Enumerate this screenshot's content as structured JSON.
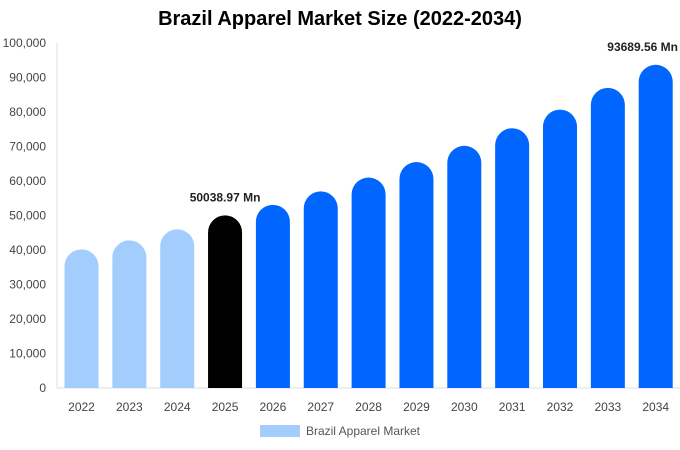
{
  "chart_data": {
    "type": "bar",
    "title": "Brazil Apparel Market Size (2022-2034)",
    "xlabel": "",
    "ylabel": "",
    "ylim": [
      0,
      100000
    ],
    "yticks": [
      0,
      10000,
      20000,
      30000,
      40000,
      50000,
      60000,
      70000,
      80000,
      90000,
      100000
    ],
    "ytick_labels": [
      "0",
      "10,000",
      "20,000",
      "30,000",
      "40,000",
      "50,000",
      "60,000",
      "70,000",
      "80,000",
      "90,000",
      "100,000"
    ],
    "categories": [
      "2022",
      "2023",
      "2024",
      "2025",
      "2026",
      "2027",
      "2028",
      "2029",
      "2030",
      "2031",
      "2032",
      "2033",
      "2034"
    ],
    "values": [
      40200,
      42800,
      46000,
      50038.97,
      53100,
      57000,
      61000,
      65500,
      70200,
      75300,
      80700,
      87000,
      93689.56
    ],
    "bar_colors": [
      "#a3cdfd",
      "#a3cdfd",
      "#a3cdfd",
      "#000000",
      "#0066ff",
      "#0066ff",
      "#0066ff",
      "#0066ff",
      "#0066ff",
      "#0066ff",
      "#0066ff",
      "#0066ff",
      "#0066ff"
    ],
    "annotations": [
      {
        "category": "2025",
        "text": "50038.97 Mn"
      },
      {
        "category": "2034",
        "text": "93689.56 Mn"
      }
    ],
    "grid": false,
    "legend": {
      "placement": "bottom",
      "entries": [
        {
          "name": "Brazil Apparel Market",
          "color": "#a3cdfd"
        }
      ]
    }
  }
}
